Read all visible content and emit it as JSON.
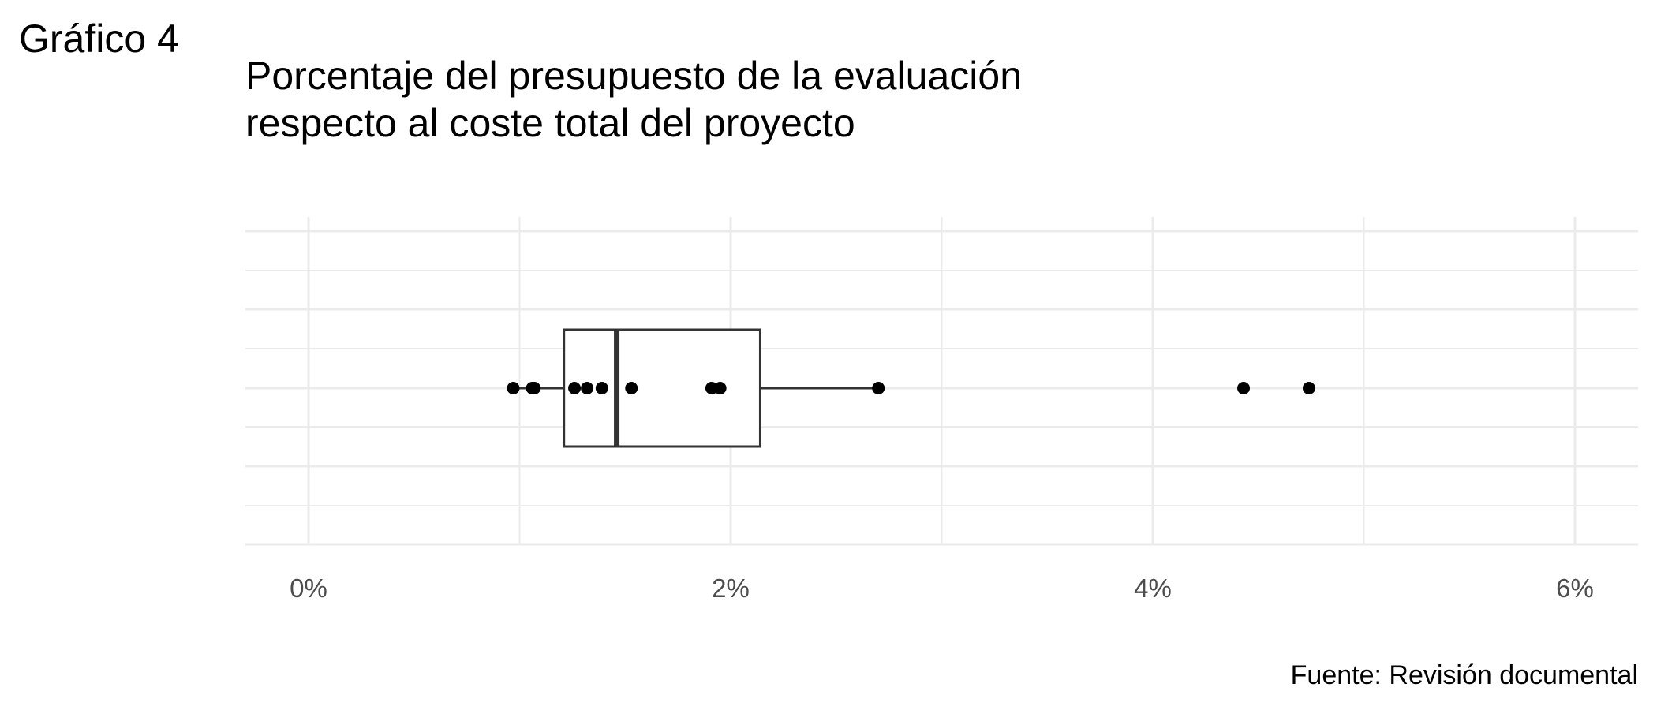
{
  "figure_label": "Gráfico 4",
  "title_lines": [
    "Porcentaje del presupuesto de la evaluación",
    "respecto al coste total del proyecto"
  ],
  "source": "Fuente: Revisión documental",
  "chart_data": {
    "type": "boxplot",
    "orientation": "horizontal",
    "x_format": "percent",
    "xlim": [
      -0.3,
      6.3
    ],
    "x_ticks": [
      0,
      2,
      4,
      6
    ],
    "x_tick_labels": [
      "0%",
      "2%",
      "4%",
      "6%"
    ],
    "grid": true,
    "box": {
      "whisker_low": 0.97,
      "q1": 1.21,
      "median": 1.46,
      "q3": 2.14,
      "whisker_high": 2.7,
      "outliers": [
        4.43,
        4.74
      ]
    },
    "points": [
      0.97,
      1.06,
      1.07,
      1.26,
      1.32,
      1.39,
      1.53,
      1.91,
      1.95,
      2.7,
      4.43,
      4.74
    ],
    "colors": {
      "box_line": "#333333",
      "point": "#000000",
      "grid": "#ebebeb"
    }
  }
}
